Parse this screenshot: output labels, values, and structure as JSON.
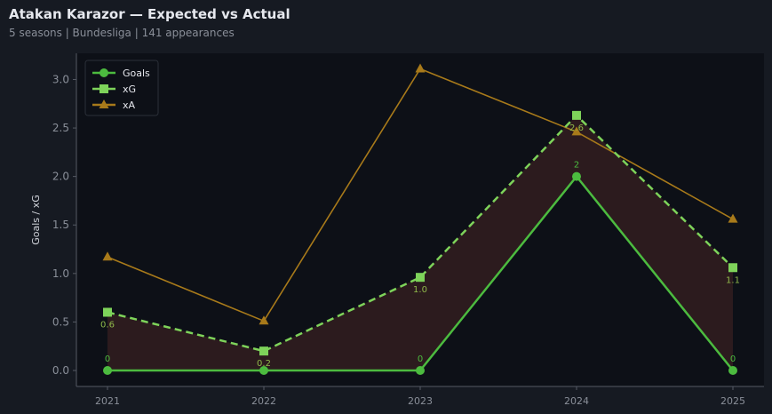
{
  "title": "Atakan Karazor — Expected vs Actual",
  "subtitle": "5 seasons | Bundesliga | 141 appearances",
  "chart_data": {
    "type": "line",
    "x": [
      "2021",
      "2022",
      "2023",
      "2024",
      "2025"
    ],
    "ylabel": "Goals / xG",
    "ylim": [
      -0.165,
      3.27
    ],
    "yticks": [
      "0.0",
      "0.5",
      "1.0",
      "1.5",
      "2.0",
      "2.5",
      "3.0"
    ],
    "legend_position": "bottom-right",
    "series": [
      {
        "name": "Goals",
        "values": [
          0,
          0,
          0,
          2,
          0
        ],
        "labels": [
          "0",
          "",
          "0",
          "2",
          "0"
        ],
        "color": "#4cbb3f",
        "marker": "circle",
        "style": "solid"
      },
      {
        "name": "xG",
        "values": [
          0.6,
          0.2,
          0.96,
          2.63,
          1.06
        ],
        "labels": [
          "0.6",
          "0.2",
          "1.0",
          "2.6",
          "1.1"
        ],
        "color": "#7ed35a",
        "marker": "square",
        "style": "dashed"
      },
      {
        "name": "xA",
        "values": [
          1.17,
          0.51,
          3.11,
          2.46,
          1.56
        ],
        "color": "#a87a1a",
        "marker": "triangle",
        "style": "solid"
      }
    ],
    "fill_between": {
      "series": [
        "Goals",
        "xG"
      ],
      "color": "#2e1c1f"
    }
  }
}
